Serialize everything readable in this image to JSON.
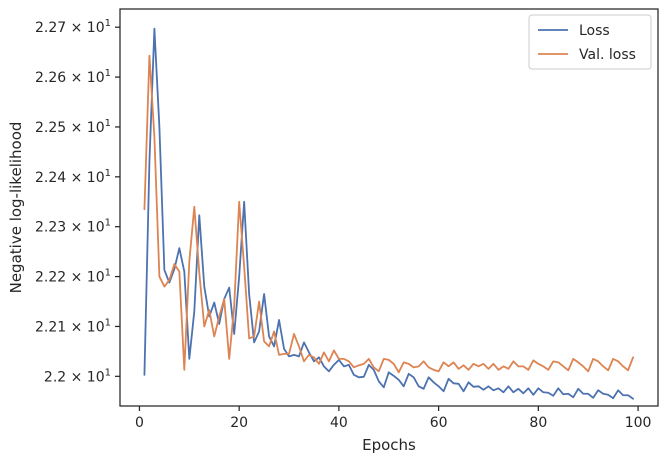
{
  "chart_data": {
    "type": "line",
    "xlabel": "Epochs",
    "ylabel": "Negative log-likelihood",
    "xlim": [
      -3.9,
      104
    ],
    "ylim": [
      21.9405,
      22.7365
    ],
    "x_ticks": [
      0,
      20,
      40,
      60,
      80,
      100
    ],
    "x_tick_labels": [
      "0",
      "20",
      "40",
      "60",
      "80",
      "100"
    ],
    "y_ticks": [
      22.0,
      22.1,
      22.2,
      22.3,
      22.4,
      22.5,
      22.6,
      22.7
    ],
    "y_tick_labels": [
      {
        "mant": "2.2",
        "exp": "1"
      },
      {
        "mant": "2.21",
        "exp": "1"
      },
      {
        "mant": "2.22",
        "exp": "1"
      },
      {
        "mant": "2.23",
        "exp": "1"
      },
      {
        "mant": "2.24",
        "exp": "1"
      },
      {
        "mant": "2.25",
        "exp": "1"
      },
      {
        "mant": "2.26",
        "exp": "1"
      },
      {
        "mant": "2.27",
        "exp": "1"
      }
    ],
    "y_tick_times": "×",
    "y_tick_base": "10",
    "grid": false,
    "legend_position": "upper-right",
    "x": [
      1,
      2,
      3,
      4,
      5,
      6,
      7,
      8,
      9,
      10,
      11,
      12,
      13,
      14,
      15,
      16,
      17,
      18,
      19,
      20,
      21,
      22,
      23,
      24,
      25,
      26,
      27,
      28,
      29,
      30,
      31,
      32,
      33,
      34,
      35,
      36,
      37,
      38,
      39,
      40,
      41,
      42,
      43,
      44,
      45,
      46,
      47,
      48,
      49,
      50,
      51,
      52,
      53,
      54,
      55,
      56,
      57,
      58,
      59,
      60,
      61,
      62,
      63,
      64,
      65,
      66,
      67,
      68,
      69,
      70,
      71,
      72,
      73,
      74,
      75,
      76,
      77,
      78,
      79,
      80,
      81,
      82,
      83,
      84,
      85,
      86,
      87,
      88,
      89,
      90,
      91,
      92,
      93,
      94,
      95,
      96,
      97,
      98,
      99
    ],
    "series": [
      {
        "name": "Loss",
        "color": "#4c72b0",
        "values": [
          22.003,
          22.43,
          22.697,
          22.5,
          22.213,
          22.188,
          22.215,
          22.257,
          22.21,
          22.035,
          22.13,
          22.323,
          22.18,
          22.12,
          22.148,
          22.105,
          22.155,
          22.178,
          22.085,
          22.2,
          22.35,
          22.165,
          22.068,
          22.09,
          22.165,
          22.08,
          22.06,
          22.113,
          22.055,
          22.04,
          22.043,
          22.04,
          22.068,
          22.048,
          22.03,
          22.038,
          22.02,
          22.01,
          22.023,
          22.033,
          22.02,
          22.023,
          22.003,
          21.998,
          21.999,
          22.023,
          22.013,
          21.99,
          21.978,
          22.008,
          22.001,
          21.993,
          21.98,
          22.005,
          21.998,
          21.98,
          21.975,
          21.998,
          21.988,
          21.98,
          21.97,
          21.995,
          21.986,
          21.985,
          21.97,
          21.988,
          21.979,
          21.98,
          21.973,
          21.98,
          21.972,
          21.976,
          21.968,
          21.98,
          21.968,
          21.975,
          21.966,
          21.976,
          21.963,
          21.976,
          21.968,
          21.967,
          21.961,
          21.976,
          21.964,
          21.965,
          21.958,
          21.975,
          21.965,
          21.965,
          21.957,
          21.972,
          21.965,
          21.963,
          21.956,
          21.972,
          21.962,
          21.962,
          21.955
        ]
      },
      {
        "name": "Val. loss",
        "color": "#dd8452",
        "values": [
          22.335,
          22.643,
          22.48,
          22.2,
          22.18,
          22.193,
          22.225,
          22.21,
          22.013,
          22.23,
          22.34,
          22.208,
          22.1,
          22.133,
          22.08,
          22.12,
          22.155,
          22.035,
          22.14,
          22.35,
          22.22,
          22.076,
          22.08,
          22.15,
          22.07,
          22.06,
          22.09,
          22.043,
          22.045,
          22.045,
          22.085,
          22.06,
          22.03,
          22.043,
          22.038,
          22.025,
          22.048,
          22.03,
          22.052,
          22.035,
          22.035,
          22.03,
          22.018,
          22.022,
          22.025,
          22.035,
          22.018,
          22.01,
          22.035,
          22.033,
          22.025,
          22.008,
          22.028,
          22.025,
          22.018,
          22.02,
          22.03,
          22.018,
          22.013,
          22.01,
          22.028,
          22.02,
          22.028,
          22.015,
          22.022,
          22.013,
          22.025,
          22.02,
          22.025,
          22.015,
          22.025,
          22.013,
          22.02,
          22.015,
          22.03,
          22.02,
          22.02,
          22.013,
          22.032,
          22.025,
          22.02,
          22.013,
          22.03,
          22.028,
          22.02,
          22.012,
          22.035,
          22.028,
          22.02,
          22.01,
          22.035,
          22.03,
          22.02,
          22.012,
          22.035,
          22.03,
          22.02,
          22.012,
          22.038
        ]
      }
    ]
  }
}
